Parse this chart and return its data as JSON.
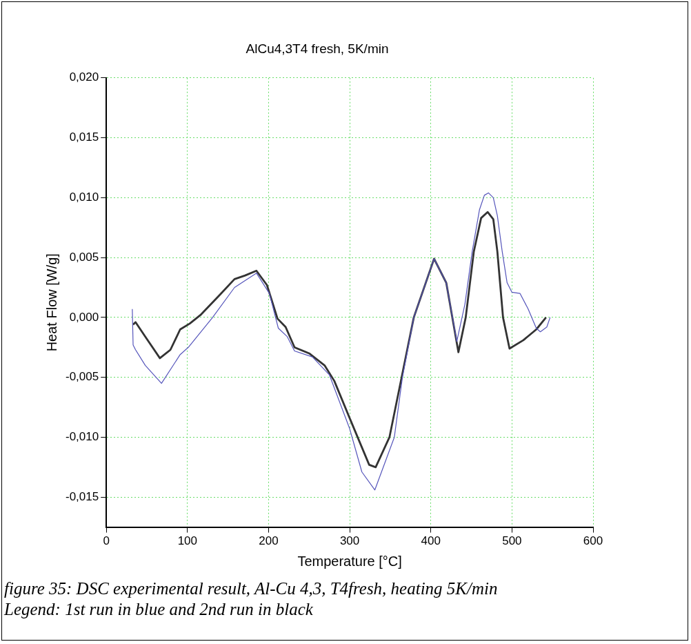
{
  "chart_data": {
    "type": "line",
    "title": "AlCu4,3T4 fresh, 5K/min",
    "xlabel": "Temperature [°C]",
    "ylabel": "Heat Flow [W/g]",
    "xlim": [
      0,
      600
    ],
    "xticks": [
      0,
      100,
      200,
      300,
      400,
      500,
      600
    ],
    "ylim": [
      -0.0175,
      0.02
    ],
    "yticks": [
      {
        "value": -0.015,
        "label": "-0,015"
      },
      {
        "value": -0.01,
        "label": "-0,010"
      },
      {
        "value": -0.005,
        "label": "-0,005"
      },
      {
        "value": 0,
        "label": "0,000"
      },
      {
        "value": 0.005,
        "label": "0,005"
      },
      {
        "value": 0.01,
        "label": "0,010"
      },
      {
        "value": 0.015,
        "label": "0,015"
      },
      {
        "value": 0.02,
        "label": "0,020"
      }
    ],
    "grid": true,
    "legend": false,
    "marker": "none",
    "line_style": "solid",
    "series": [
      {
        "color": "#5555bb",
        "x": [
          32,
          33,
          36,
          48,
          68,
          91,
          101,
          131,
          158,
          185,
          201,
          212,
          223,
          232,
          254,
          275,
          300,
          315,
          331,
          355,
          365,
          379,
          404,
          419,
          432,
          442,
          451,
          460,
          466,
          471,
          477,
          482,
          488,
          494,
          500,
          510,
          520,
          530,
          535,
          543,
          547
        ],
        "values": [
          0.0007,
          -0.0023,
          -0.0027,
          -0.004,
          -0.0055,
          -0.0031,
          -0.0025,
          0,
          0.0025,
          0.0037,
          0.002,
          -0.0009,
          -0.0016,
          -0.0028,
          -0.0033,
          -0.0048,
          -0.0093,
          -0.0129,
          -0.0144,
          -0.01,
          -0.005,
          0,
          0.0049,
          0.0029,
          -0.002,
          0.0011,
          0.0055,
          0.009,
          0.0102,
          0.0104,
          0.01,
          0.0085,
          0.0055,
          0.0029,
          0.0021,
          0.002,
          0.0007,
          -0.0009,
          -0.0012,
          -0.0008,
          0
        ]
      },
      {
        "color": "#333333",
        "x": [
          33,
          36,
          48,
          66,
          79,
          91,
          103,
          116,
          140,
          158,
          171,
          185,
          198,
          211,
          221,
          232,
          250,
          269,
          281,
          303,
          324,
          332,
          349,
          364,
          379,
          404,
          419,
          434,
          443,
          453,
          462,
          470,
          477,
          482,
          489,
          497,
          514,
          530,
          542
        ],
        "values": [
          -0.0006,
          -0.0004,
          -0.0016,
          -0.0034,
          -0.0027,
          -0.001,
          -0.0005,
          0.0002,
          0.0019,
          0.0032,
          0.0035,
          0.0039,
          0.0027,
          -0.0001,
          -0.0008,
          -0.0025,
          -0.003,
          -0.004,
          -0.0053,
          -0.0089,
          -0.0123,
          -0.0125,
          -0.01,
          -0.005,
          0,
          0.0049,
          0.0029,
          -0.0029,
          0,
          0.0055,
          0.0083,
          0.0088,
          0.0082,
          0.0055,
          0,
          -0.0026,
          -0.0019,
          -0.001,
          0
        ]
      }
    ],
    "annotations": [
      "figure 35: DSC experimental result, Al-Cu 4,3, T4fresh, heating 5K/min",
      "Legend: 1st run in blue and 2nd run in black"
    ]
  }
}
